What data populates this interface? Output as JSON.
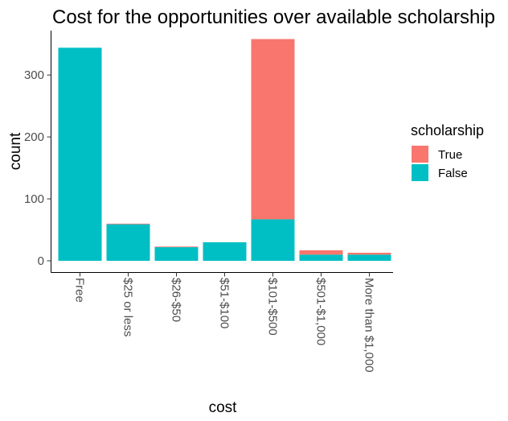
{
  "chart_data": {
    "type": "bar",
    "stacked": true,
    "title": "Cost for the opportunities over available scholarship",
    "xlabel": "cost",
    "ylabel": "count",
    "categories": [
      "Free",
      "$25 or less",
      "$26-$50",
      "$51-$100",
      "$101-$500",
      "$501-$1,000",
      "More than $1,000"
    ],
    "series": [
      {
        "name": "False",
        "color": "#00BFC4",
        "values": [
          344,
          59,
          22,
          30,
          67,
          10,
          10
        ]
      },
      {
        "name": "True",
        "color": "#F8766D",
        "values": [
          0,
          1,
          1,
          0,
          291,
          7,
          3
        ]
      }
    ],
    "yticks": [
      0,
      100,
      200,
      300
    ],
    "ylim": [
      0,
      375
    ],
    "grid": false,
    "legend": {
      "title": "scholarship",
      "entries": [
        {
          "label": "True",
          "color": "#F8766D"
        },
        {
          "label": "False",
          "color": "#00BFC4"
        }
      ],
      "placement": "right"
    }
  }
}
